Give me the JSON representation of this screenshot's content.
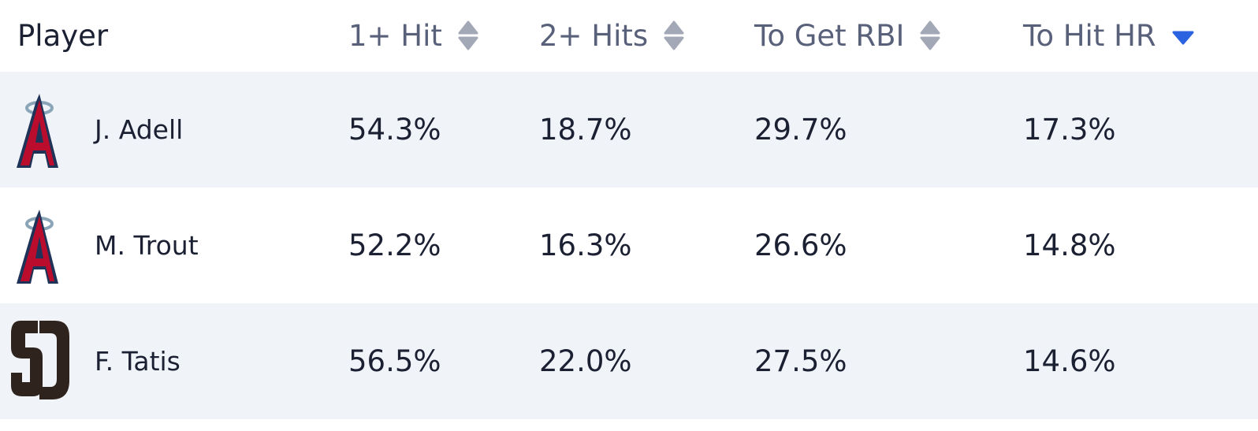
{
  "table": {
    "headers": [
      "Player",
      "1+ Hit",
      "2+ Hits",
      "To Get RBI",
      "To Hit HR"
    ],
    "rows": [
      [
        "J. Adell",
        "54.3%",
        "18.7%",
        "29.7%",
        "17.3%"
      ],
      [
        "M. Trout",
        "52.2%",
        "16.3%",
        "26.6%",
        "14.8%"
      ],
      [
        "F. Tatis",
        "56.5%",
        "22.0%",
        "27.5%",
        "14.6%"
      ]
    ]
  }
}
